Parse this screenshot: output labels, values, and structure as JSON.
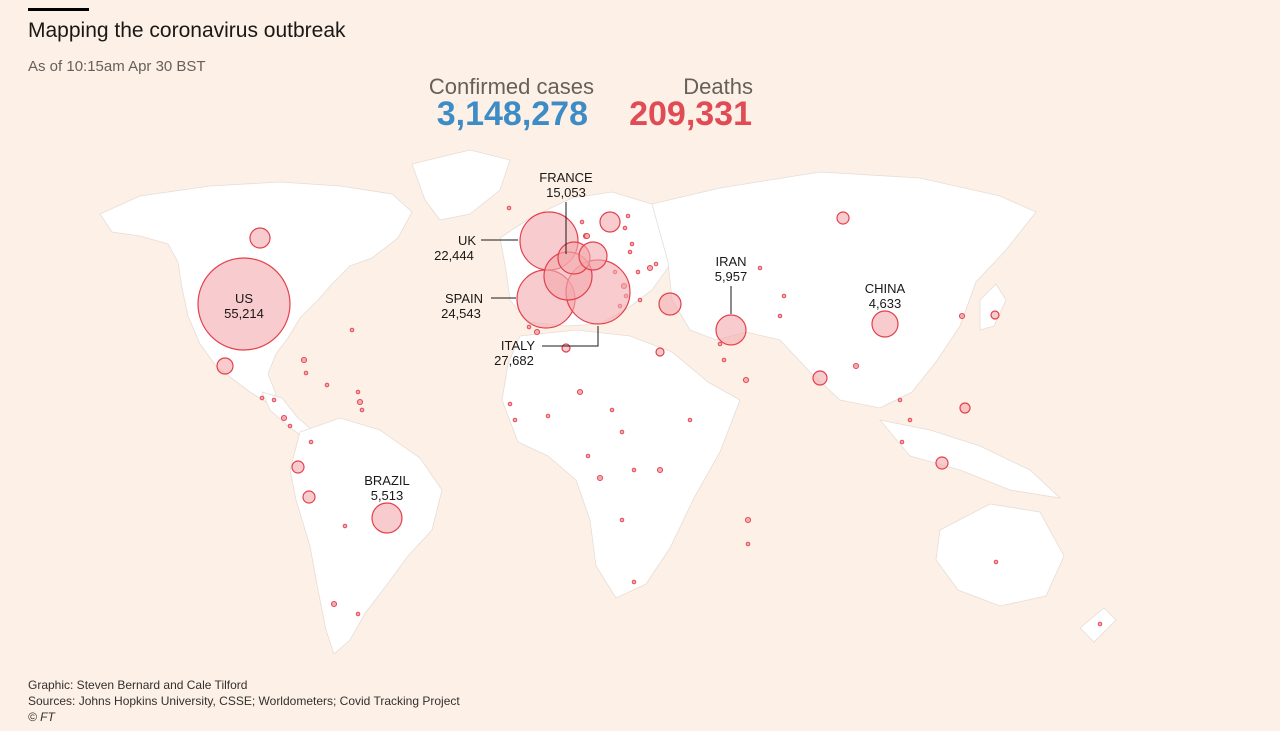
{
  "header": {
    "title": "Mapping the coronavirus outbreak",
    "subtitle": "As of 10:15am Apr 30 BST"
  },
  "totals": {
    "confirmed_label": "Confirmed cases",
    "confirmed_value": "3,148,278",
    "deaths_label": "Deaths",
    "deaths_value": "209,331"
  },
  "colors": {
    "background": "#fdf0e6",
    "land": "#ffffff",
    "confirmed": "#3d8cc6",
    "deaths": "#e04b55",
    "bubble_fill": "#f4a9ae",
    "bubble_stroke": "#e3404c"
  },
  "labelled_countries": [
    {
      "name": "US",
      "deaths": "55,214"
    },
    {
      "name": "UK",
      "deaths": "22,444"
    },
    {
      "name": "FRANCE",
      "deaths": "15,053"
    },
    {
      "name": "SPAIN",
      "deaths": "24,543"
    },
    {
      "name": "ITALY",
      "deaths": "27,682"
    },
    {
      "name": "IRAN",
      "deaths": "5,957"
    },
    {
      "name": "CHINA",
      "deaths": "4,633"
    },
    {
      "name": "BRAZIL",
      "deaths": "5,513"
    }
  ],
  "footer": {
    "graphic": "Graphic: Steven Bernard and Cale Tilford",
    "sources": "Sources: Johns Hopkins University, CSSE; Worldometers; Covid Tracking Project",
    "copyright": "© FT"
  }
}
